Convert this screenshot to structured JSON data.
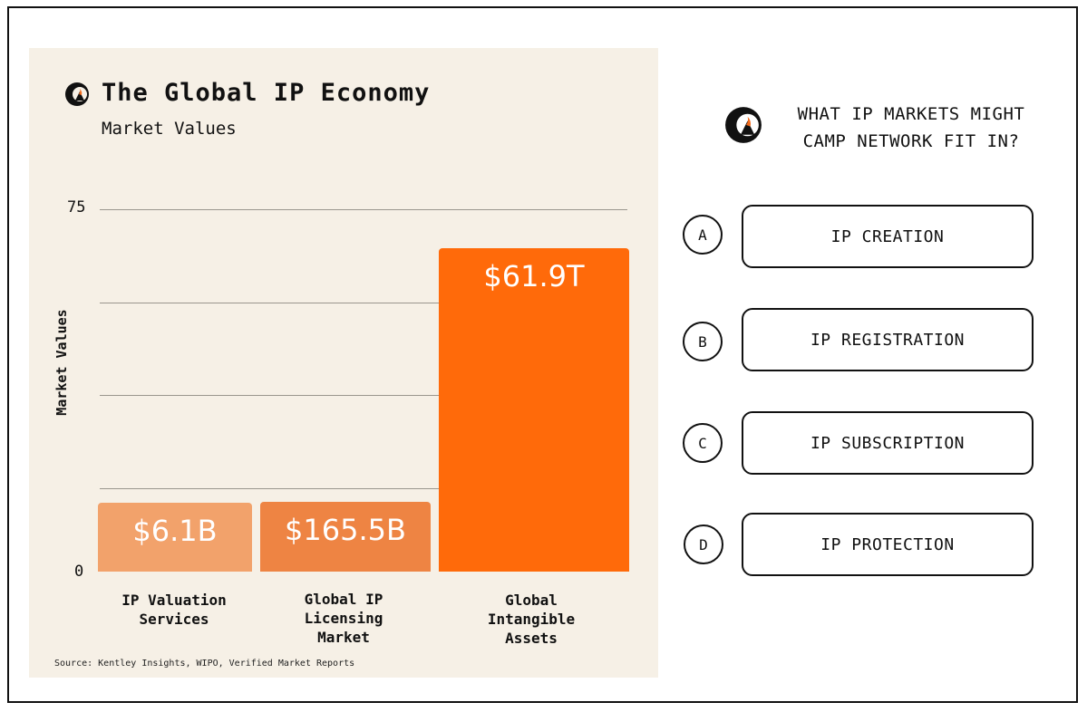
{
  "chart_data": {
    "type": "bar",
    "title": "The Global IP Economy",
    "subtitle": "Market Values",
    "ylabel": "Market Values",
    "xlabel": "",
    "yticks": [
      "75",
      "0"
    ],
    "ylim": [
      0,
      75
    ],
    "categories": [
      "IP Valuation Services",
      "Global IP Licensing Market",
      "Global Intangible Assets"
    ],
    "category_lines": [
      [
        "IP Valuation",
        "Services"
      ],
      [
        "Global IP",
        "Licensing",
        "Market"
      ],
      [
        "Global",
        "Intangible",
        "Assets"
      ]
    ],
    "values": [
      6.1,
      165.5,
      61.9
    ],
    "units": [
      "B",
      "B",
      "T"
    ],
    "value_labels": [
      "$6.1B",
      "$165.5B",
      "$61.9T"
    ],
    "bar_colors": [
      "#f2a26b",
      "#ee8443",
      "#ff6a0a"
    ],
    "grid": true,
    "source": "Source: Kentley Insights, WIPO, Verified Market Reports"
  },
  "logo": {
    "name": "camp-logo-icon",
    "color": "#111111",
    "accent": "#f26a1b"
  },
  "quiz": {
    "question": "WHAT IP MARKETS MIGHT CAMP NETWORK FIT IN?",
    "options": [
      {
        "letter": "A",
        "label": "IP CREATION"
      },
      {
        "letter": "B",
        "label": "IP REGISTRATION"
      },
      {
        "letter": "C",
        "label": "IP SUBSCRIPTION"
      },
      {
        "letter": "D",
        "label": "IP PROTECTION"
      }
    ]
  }
}
